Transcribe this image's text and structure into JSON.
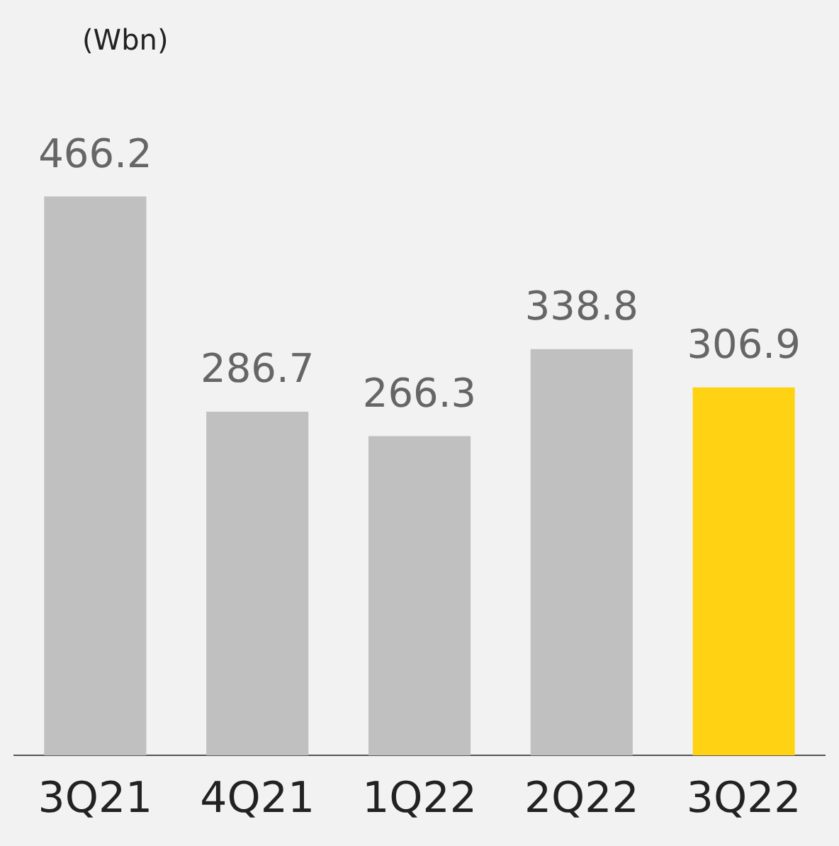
{
  "chart_data": {
    "type": "bar",
    "ylabel": "(Wbn)",
    "categories": [
      "3Q21",
      "4Q21",
      "1Q22",
      "2Q22",
      "3Q22"
    ],
    "values": [
      466.2,
      286.7,
      266.3,
      338.8,
      306.9
    ],
    "colors": [
      "#c0c0c0",
      "#c0c0c0",
      "#c0c0c0",
      "#c0c0c0",
      "#ffd314"
    ],
    "data_labels": true,
    "grid": false,
    "legend": false
  }
}
